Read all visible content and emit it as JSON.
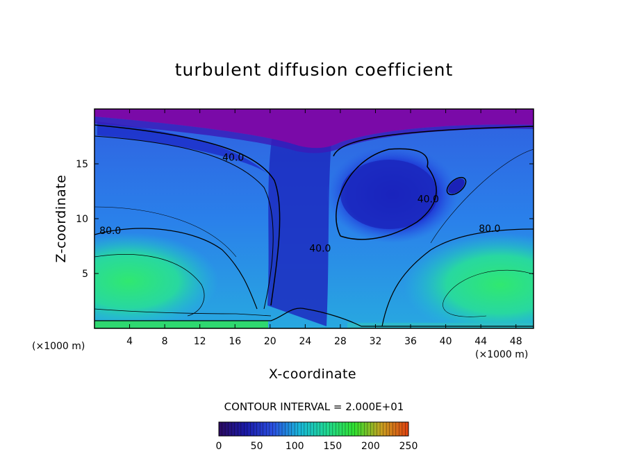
{
  "chart_data": {
    "type": "heatmap",
    "title": "turbulent diffusion coefficient",
    "xlabel": "X-coordinate",
    "ylabel": "Z-coordinate",
    "x_unit_left": "(×1000 m)",
    "x_unit_right": "(×1000 m)",
    "xlim": [
      0,
      50
    ],
    "ylim": [
      0,
      20
    ],
    "x_ticks": [
      4,
      8,
      12,
      16,
      20,
      24,
      28,
      32,
      36,
      40,
      44,
      48
    ],
    "y_ticks": [
      5,
      10,
      15
    ],
    "contour_interval_text": "CONTOUR INTERVAL = 2.000E+01",
    "contour_labels": [
      {
        "text": "40.0",
        "x": 15.8,
        "z": 15.3
      },
      {
        "text": "80.0",
        "x": 1.8,
        "z": 8.6
      },
      {
        "text": "40.0",
        "x": 25.7,
        "z": 7.0
      },
      {
        "text": "40.0",
        "x": 38.0,
        "z": 11.5
      },
      {
        "text": "80.0",
        "x": 45.0,
        "z": 8.8
      }
    ],
    "colorbar": {
      "min": 0,
      "max": 250,
      "tick_labels": [
        "0",
        "50",
        "100",
        "150",
        "200",
        "250"
      ],
      "colors": [
        "#2a0a60",
        "#1a1aa8",
        "#2a50e0",
        "#18b8d8",
        "#20d890",
        "#30e030",
        "#c8a020",
        "#e04010"
      ]
    },
    "field_colors": {
      "top": "#7a0aa8",
      "deep_blue": "#1a2ed0",
      "mid_blue": "#2a70ee",
      "cyan": "#20b8d8",
      "green": "#2ee080"
    }
  }
}
